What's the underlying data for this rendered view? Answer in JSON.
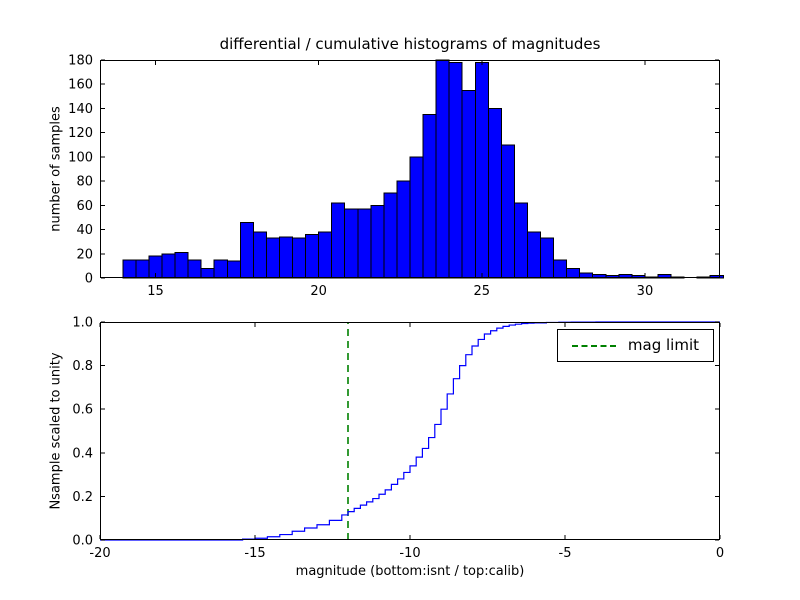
{
  "figure": {
    "background": "#ffffff"
  },
  "chart_data": [
    {
      "type": "bar",
      "title": "differential / cumulative histograms of magnitudes",
      "ylabel": "number of samples",
      "xlim": [
        13.3,
        32.3
      ],
      "ylim": [
        0,
        180
      ],
      "xticks": [
        15,
        20,
        25,
        30
      ],
      "xtick_labels": [
        "15",
        "20",
        "25",
        "30"
      ],
      "yticks": [
        0,
        20,
        40,
        60,
        80,
        100,
        120,
        140,
        160,
        180
      ],
      "ytick_labels": [
        "0",
        "20",
        "40",
        "60",
        "80",
        "100",
        "120",
        "140",
        "160",
        "180"
      ],
      "grid": false,
      "bar_color": "#0000ff",
      "bar_edge_color": "#000000",
      "bins_start": 14.0,
      "bin_width": 0.4,
      "values": [
        15,
        15,
        18,
        20,
        21,
        15,
        8,
        15,
        14,
        46,
        38,
        33,
        34,
        33,
        36,
        38,
        62,
        57,
        57,
        60,
        70,
        80,
        100,
        135,
        180,
        178,
        155,
        178,
        140,
        110,
        62,
        38,
        33,
        15,
        8,
        4,
        3,
        2,
        3,
        2,
        1,
        3,
        1,
        0,
        1,
        2
      ]
    },
    {
      "type": "line",
      "ylabel": "Nsample scaled to unity",
      "xlabel": "magnitude (bottom:isnt / top:calib)",
      "xlim": [
        -20,
        0
      ],
      "ylim": [
        0.0,
        1.0
      ],
      "xticks": [
        -20,
        -15,
        -10,
        -5,
        0
      ],
      "xtick_labels": [
        "-20",
        "-15",
        "-10",
        "-5",
        "0"
      ],
      "yticks": [
        0.0,
        0.2,
        0.4,
        0.6,
        0.8,
        1.0
      ],
      "ytick_labels": [
        "0.0",
        "0.2",
        "0.4",
        "0.6",
        "0.8",
        "1.0"
      ],
      "grid": false,
      "line_color": "#0000ff",
      "step_points": [
        [
          -20.0,
          0.0
        ],
        [
          -15.8,
          0.0
        ],
        [
          -15.4,
          0.004
        ],
        [
          -15.0,
          0.008
        ],
        [
          -14.6,
          0.015
        ],
        [
          -14.2,
          0.025
        ],
        [
          -13.8,
          0.04
        ],
        [
          -13.4,
          0.055
        ],
        [
          -13.0,
          0.07
        ],
        [
          -12.6,
          0.09
        ],
        [
          -12.2,
          0.115
        ],
        [
          -12.0,
          0.13
        ],
        [
          -11.8,
          0.145
        ],
        [
          -11.6,
          0.16
        ],
        [
          -11.4,
          0.175
        ],
        [
          -11.2,
          0.19
        ],
        [
          -11.0,
          0.21
        ],
        [
          -10.8,
          0.23
        ],
        [
          -10.6,
          0.255
        ],
        [
          -10.4,
          0.28
        ],
        [
          -10.2,
          0.31
        ],
        [
          -10.0,
          0.34
        ],
        [
          -9.8,
          0.38
        ],
        [
          -9.6,
          0.42
        ],
        [
          -9.4,
          0.47
        ],
        [
          -9.2,
          0.53
        ],
        [
          -9.0,
          0.6
        ],
        [
          -8.8,
          0.67
        ],
        [
          -8.6,
          0.74
        ],
        [
          -8.4,
          0.8
        ],
        [
          -8.2,
          0.85
        ],
        [
          -8.0,
          0.89
        ],
        [
          -7.8,
          0.92
        ],
        [
          -7.6,
          0.945
        ],
        [
          -7.4,
          0.96
        ],
        [
          -7.2,
          0.972
        ],
        [
          -7.0,
          0.98
        ],
        [
          -6.8,
          0.986
        ],
        [
          -6.6,
          0.99
        ],
        [
          -6.4,
          0.993
        ],
        [
          -6.2,
          0.995
        ],
        [
          -6.0,
          0.996
        ],
        [
          -5.6,
          0.998
        ],
        [
          -5.2,
          0.999
        ],
        [
          -4.8,
          0.9995
        ],
        [
          -4.0,
          1.0
        ],
        [
          0.0,
          1.0
        ]
      ],
      "mag_limit": {
        "x": -12,
        "color": "#008000",
        "linestyle": "dashed"
      },
      "legend": {
        "label": "mag limit",
        "position": "upper right"
      }
    }
  ]
}
